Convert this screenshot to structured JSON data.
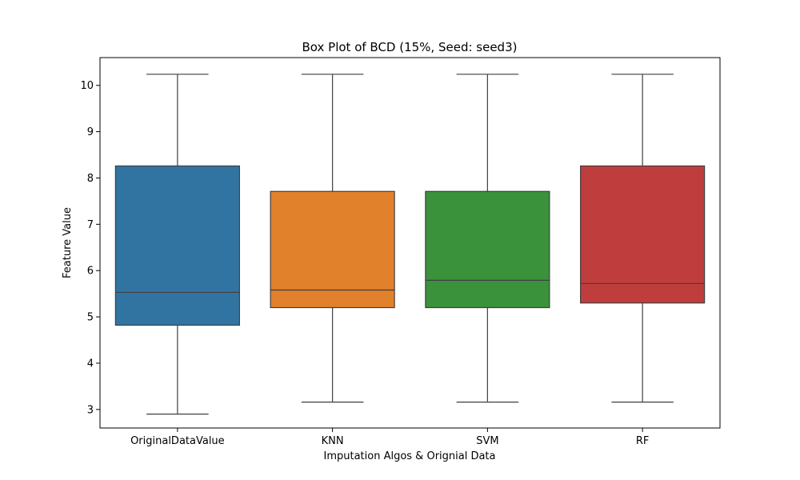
{
  "chart_data": {
    "type": "box",
    "title": "Box Plot of BCD (15%, Seed: seed3)",
    "xlabel": "Imputation Algos & Orignial Data",
    "ylabel": "Feature Value",
    "ylim": [
      2.6,
      10.6
    ],
    "yticks": [
      3,
      4,
      5,
      6,
      7,
      8,
      9,
      10
    ],
    "grid": false,
    "categories": [
      "OriginalDataValue",
      "KNN",
      "SVM",
      "RF"
    ],
    "boxes": [
      {
        "name": "OriginalDataValue",
        "min": 2.9,
        "q1": 4.82,
        "median": 5.53,
        "q3": 8.26,
        "max": 10.24,
        "color": "#3274a1"
      },
      {
        "name": "KNN",
        "min": 3.16,
        "q1": 5.2,
        "median": 5.58,
        "q3": 7.71,
        "max": 10.24,
        "color": "#e1812c"
      },
      {
        "name": "SVM",
        "min": 3.16,
        "q1": 5.2,
        "median": 5.79,
        "q3": 7.71,
        "max": 10.24,
        "color": "#3a923a"
      },
      {
        "name": "RF",
        "min": 3.16,
        "q1": 5.3,
        "median": 5.72,
        "q3": 8.26,
        "max": 10.24,
        "color": "#c03d3e"
      }
    ]
  }
}
